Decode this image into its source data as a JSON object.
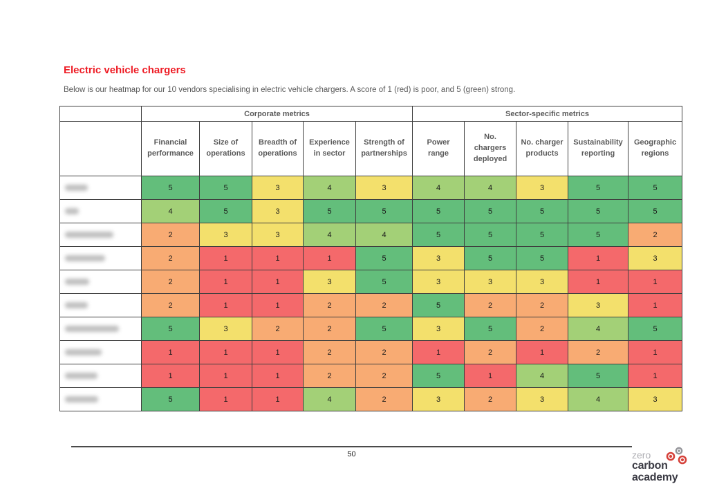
{
  "page": {
    "title": "Electric vehicle chargers",
    "subtitle": "Below is our heatmap for our 10 vendors specialising in electric vehicle chargers. A score of 1 (red) is poor, and 5 (green) strong."
  },
  "footer": {
    "page_number": "50"
  },
  "logo": {
    "line1": "zero",
    "line2": "carbon",
    "line3": "academy",
    "icon": "molecule-icon",
    "icon_red": "#d6423b",
    "icon_gray": "#95959a"
  },
  "chart_data": {
    "type": "heatmap",
    "title": "Electric vehicle chargers",
    "legend_note": "A score of 1 (red) is poor, and 5 (green) strong",
    "column_groups": [
      {
        "label": "Corporate metrics",
        "columns": [
          "Financial performance",
          "Size of operations",
          "Breadth of operations",
          "Experience in sector",
          "Strength of partnerships"
        ]
      },
      {
        "label": "Sector-specific metrics",
        "columns": [
          "Power range",
          "No. chargers deployed",
          "No. charger products",
          "Sustainability reporting",
          "Geographic regions"
        ]
      }
    ],
    "scale": {
      "min": 1,
      "max": 5,
      "colors": {
        "1": "#F4696B",
        "2": "#F8AB73",
        "3": "#F3E06C",
        "4": "#A3D077",
        "5": "#63BE7B"
      }
    },
    "rows": [
      {
        "vendor": "(redacted)",
        "vendor_blur_width": 33,
        "values": [
          5,
          5,
          3,
          4,
          3,
          4,
          4,
          3,
          5,
          5
        ]
      },
      {
        "vendor": "(redacted)",
        "vendor_blur_width": 20,
        "values": [
          4,
          5,
          3,
          5,
          5,
          5,
          5,
          5,
          5,
          5
        ]
      },
      {
        "vendor": "(redacted)",
        "vendor_blur_width": 70,
        "values": [
          2,
          3,
          3,
          4,
          4,
          5,
          5,
          5,
          5,
          2
        ]
      },
      {
        "vendor": "(redacted)",
        "vendor_blur_width": 58,
        "values": [
          2,
          1,
          1,
          1,
          5,
          3,
          5,
          5,
          1,
          3
        ]
      },
      {
        "vendor": "(redacted)",
        "vendor_blur_width": 35,
        "values": [
          2,
          1,
          1,
          3,
          5,
          3,
          3,
          3,
          1,
          1
        ]
      },
      {
        "vendor": "(redacted)",
        "vendor_blur_width": 33,
        "values": [
          2,
          1,
          1,
          2,
          2,
          5,
          2,
          2,
          3,
          1
        ]
      },
      {
        "vendor": "(redacted)",
        "vendor_blur_width": 78,
        "values": [
          5,
          3,
          2,
          2,
          5,
          3,
          5,
          2,
          4,
          5
        ]
      },
      {
        "vendor": "(redacted)",
        "vendor_blur_width": 53,
        "values": [
          1,
          1,
          1,
          2,
          2,
          1,
          2,
          1,
          2,
          1
        ]
      },
      {
        "vendor": "(redacted)",
        "vendor_blur_width": 47,
        "values": [
          1,
          1,
          1,
          2,
          2,
          5,
          1,
          4,
          5,
          1
        ]
      },
      {
        "vendor": "(redacted)",
        "vendor_blur_width": 48,
        "values": [
          5,
          1,
          1,
          4,
          2,
          3,
          2,
          3,
          4,
          3
        ]
      }
    ]
  }
}
